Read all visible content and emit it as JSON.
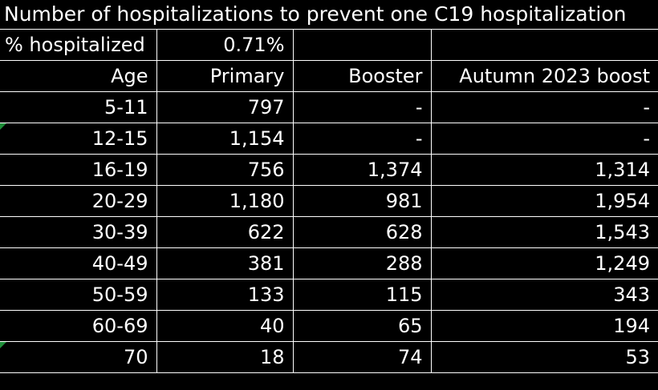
{
  "title": "Number of hospitalizations to prevent one C19 hospitalization",
  "pct_row": {
    "label": "% hospitalized",
    "value": "0.71%"
  },
  "headers": {
    "age": "Age",
    "primary": "Primary",
    "booster": "Booster",
    "autumn": "Autumn 2023 boost"
  },
  "rows": [
    {
      "age": "5-11",
      "primary": "797",
      "booster": "-",
      "autumn": "-"
    },
    {
      "age": "12-15",
      "primary": "1,154",
      "booster": "-",
      "autumn": "-"
    },
    {
      "age": "16-19",
      "primary": "756",
      "booster": "1,374",
      "autumn": "1,314"
    },
    {
      "age": "20-29",
      "primary": "1,180",
      "booster": "981",
      "autumn": "1,954"
    },
    {
      "age": "30-39",
      "primary": "622",
      "booster": "628",
      "autumn": "1,543"
    },
    {
      "age": "40-49",
      "primary": "381",
      "booster": "288",
      "autumn": "1,249"
    },
    {
      "age": "50-59",
      "primary": "133",
      "booster": "115",
      "autumn": "343"
    },
    {
      "age": "60-69",
      "primary": "40",
      "booster": "65",
      "autumn": "194"
    },
    {
      "age": "70",
      "primary": "18",
      "booster": "74",
      "autumn": "53"
    }
  ],
  "colors": {
    "background": "#000000",
    "text": "#ffffff",
    "grid": "#ffffff",
    "cell_flag": "#1f8f3a"
  }
}
